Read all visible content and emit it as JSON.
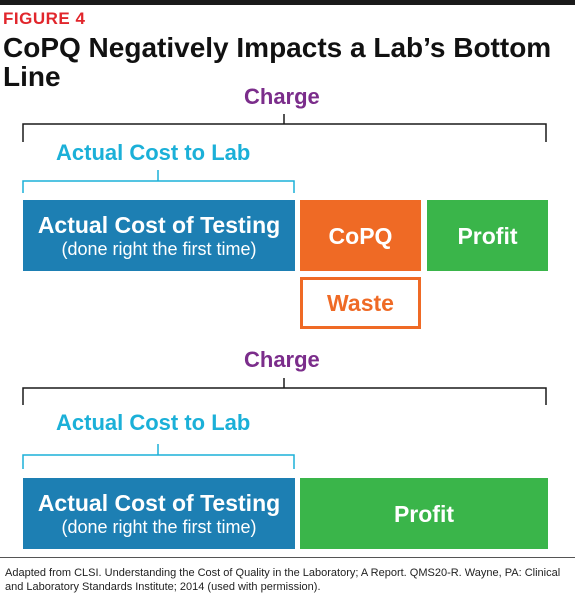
{
  "figure_label": "FIGURE 4",
  "title": "CoPQ Negatively Impacts a Lab’s Bottom Line",
  "top_diagram": {
    "charge_label": "Charge",
    "actual_cost_to_lab_label": "Actual Cost to Lab",
    "testing_box": {
      "title": "Actual Cost of Testing",
      "subtitle": "(done right the first time)"
    },
    "copq_box": "CoPQ",
    "profit_box": "Profit",
    "waste_box": "Waste"
  },
  "bottom_diagram": {
    "charge_label": "Charge",
    "actual_cost_to_lab_label": "Actual Cost to Lab",
    "testing_box": {
      "title": "Actual Cost of Testing",
      "subtitle": "(done right the first time)"
    },
    "profit_box": "Profit"
  },
  "source_note": "Adapted from CLSI. Understanding the Cost of Quality in the Laboratory; A Report. QMS20-R. Wayne, PA: Clinical and Laboratory Standards Institute; 2014 (used with permission).",
  "colors": {
    "figure_label": "#e1262c",
    "charge": "#7b2d8b",
    "actual_cost_to_lab": "#1bb0d8",
    "testing_box": "#1d7fb3",
    "copq": "#ef6a25",
    "profit": "#3ab54a"
  }
}
